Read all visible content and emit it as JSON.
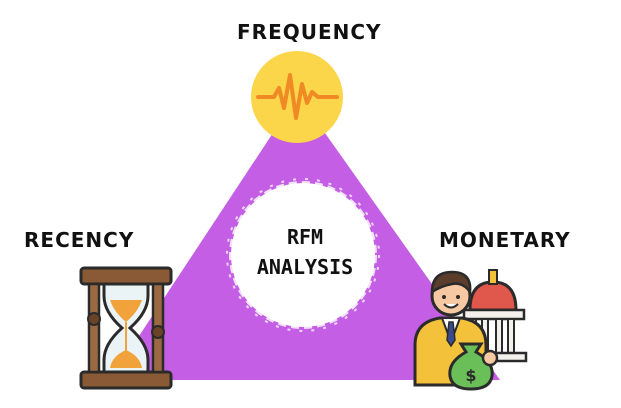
{
  "diagram": {
    "labels": {
      "frequency": "FREQUENCY",
      "recency": "RECENCY",
      "monetary": "MONETARY"
    },
    "center": {
      "line1": "RFM",
      "line2": "ANALYSIS"
    }
  },
  "colors": {
    "triangle": "#c35ee5",
    "center_circle": "#ffffff",
    "frequency_circle": "#fbd64a",
    "pulse_line": "#f08a24",
    "money_bag": "#6bbf59",
    "suit": "#f4c23a"
  },
  "icons": {
    "frequency": "heartbeat-pulse-icon",
    "recency": "hourglass-icon",
    "monetary": "businessman-money-bank-icon"
  }
}
